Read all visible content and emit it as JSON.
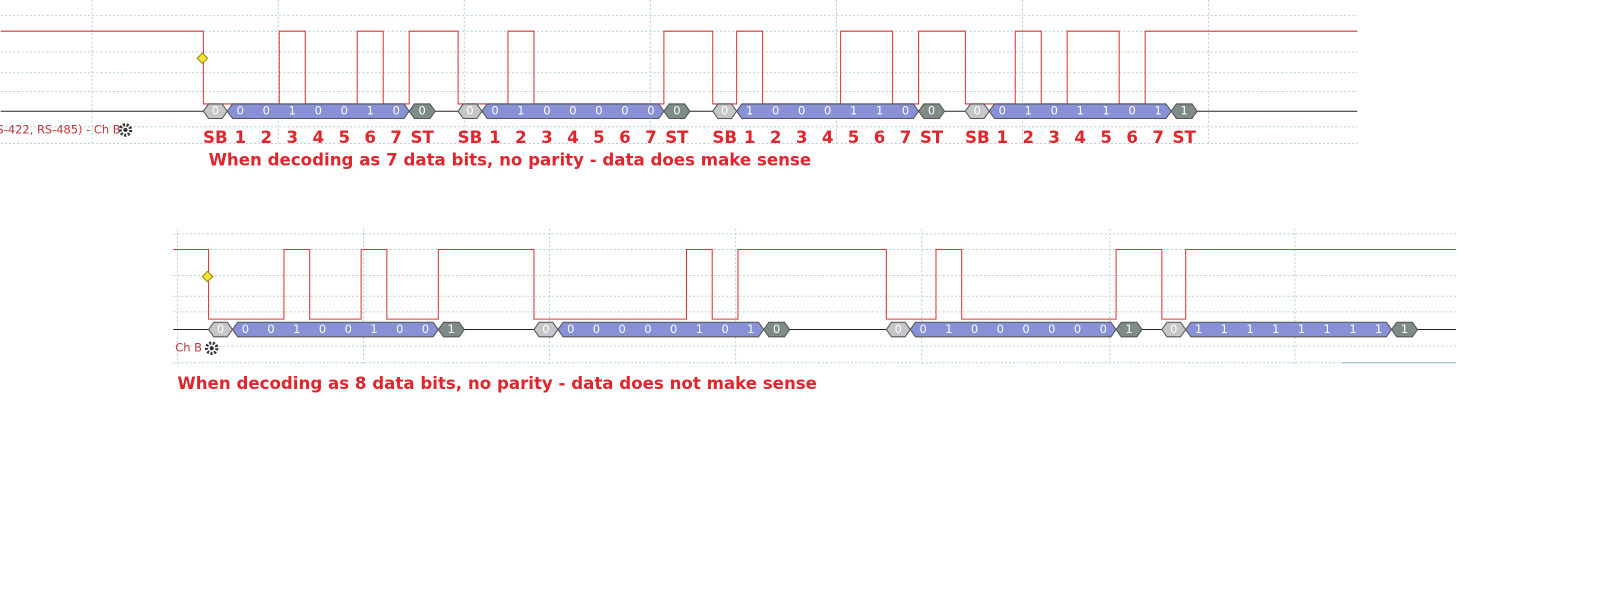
{
  "panels": [
    {
      "channel_label": "S-422, RS-485) - Ch B",
      "bit_labels": [
        "SB",
        "1",
        "2",
        "3",
        "4",
        "5",
        "6",
        "7",
        "ST"
      ],
      "frames": [
        {
          "start": "0",
          "bits": [
            "0",
            "0",
            "1",
            "0",
            "0",
            "1",
            "0"
          ],
          "stop": "0"
        },
        {
          "start": "0",
          "bits": [
            "0",
            "1",
            "0",
            "0",
            "0",
            "0",
            "0"
          ],
          "stop": "0"
        },
        {
          "start": "0",
          "bits": [
            "1",
            "0",
            "0",
            "0",
            "1",
            "1",
            "0"
          ],
          "stop": "0"
        },
        {
          "start": "0",
          "bits": [
            "0",
            "1",
            "0",
            "1",
            "1",
            "0",
            "1"
          ],
          "stop": "1"
        }
      ],
      "annotation": "When decoding as 7 data bits, no parity - data does make sense"
    },
    {
      "channel_label": "Ch B",
      "frames": [
        {
          "start": "0",
          "bits": [
            "0",
            "0",
            "1",
            "0",
            "0",
            "1",
            "0",
            "0"
          ],
          "stop": "1"
        },
        {
          "start": "0",
          "bits": [
            "0",
            "0",
            "0",
            "0",
            "0",
            "1",
            "0",
            "1"
          ],
          "stop": "0"
        },
        {
          "start": "0",
          "bits": [
            "0",
            "1",
            "0",
            "0",
            "0",
            "0",
            "0",
            "0"
          ],
          "stop": "1"
        },
        {
          "start": "0",
          "bits": [
            "1",
            "1",
            "1",
            "1",
            "1",
            "1",
            "1",
            "1"
          ],
          "stop": "1"
        }
      ],
      "annotation": "When decoding as 8 data bits, no parity - data does not make sense"
    }
  ]
}
